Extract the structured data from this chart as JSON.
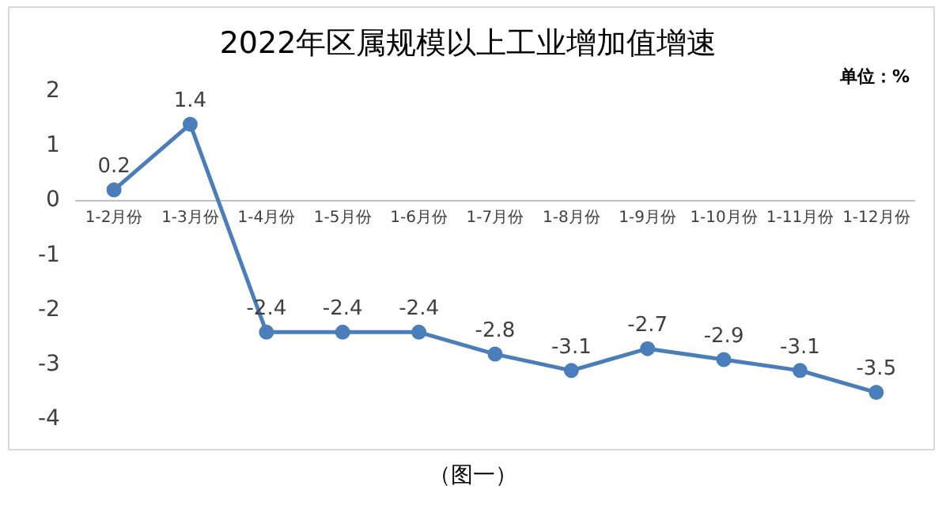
{
  "chart_data": {
    "type": "line",
    "title": "2022年区属规模以上工业增加值增速",
    "categories": [
      "1-2月份",
      "1-3月份",
      "1-4月份",
      "1-5月份",
      "1-6月份",
      "1-7月份",
      "1-8月份",
      "1-9月份",
      "1-10月份",
      "1-11月份",
      "1-12月份"
    ],
    "series": [
      {
        "color": "#4a7ebb",
        "values": [
          0.2,
          1.4,
          -2.4,
          -2.4,
          -2.4,
          -2.8,
          -3.1,
          -2.7,
          -2.9,
          -3.1,
          -3.5
        ]
      }
    ],
    "ylim": [
      -4,
      2
    ],
    "yticks": [
      -4,
      -3,
      -2,
      -1,
      0,
      1,
      2
    ],
    "grid": false,
    "legend": false,
    "marker": "circle",
    "line_style": "solid",
    "data_labels": true,
    "annotations": [
      "单位：%",
      "（图一）"
    ]
  }
}
